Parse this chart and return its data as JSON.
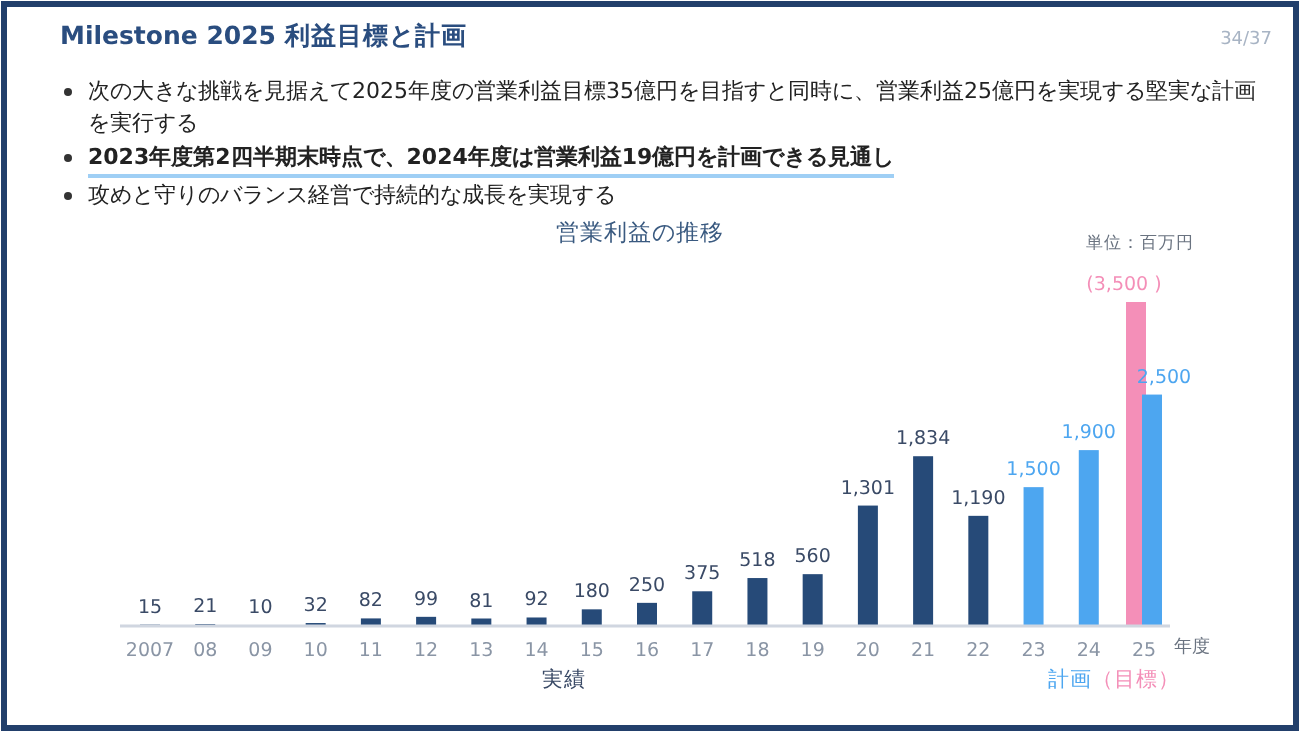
{
  "chart_data": {
    "type": "bar",
    "title": "Milestone 2025 利益目標と計画",
    "subtitle": "営業利益の推移",
    "xlabel": "年度",
    "annotations": [
      "34/37",
      "次の大きな挑戦を見据えて2025年度の営業利益目標35億円を目指すと同時に、営業利益25億円を実現する堅実な計画を実行する",
      "2023年度第2四半期末時点で、2024年度は営業利益19億円を計画できる見通し",
      "攻めと守りのバランス経営で持続的な成長を実現する",
      "単位：百万円"
    ],
    "categories": [
      "2007",
      "08",
      "09",
      "10",
      "11",
      "12",
      "13",
      "14",
      "15",
      "16",
      "17",
      "18",
      "19",
      "20",
      "21",
      "22",
      "23",
      "24",
      "25"
    ],
    "series": [
      {
        "name": "実績",
        "color": "#264a78",
        "values": [
          15,
          21,
          10,
          32,
          82,
          99,
          81,
          92,
          180,
          250,
          375,
          518,
          560,
          1301,
          1834,
          1190,
          null,
          null,
          null
        ],
        "value_labels": [
          "15",
          "21",
          "10",
          "32",
          "82",
          "99",
          "81",
          "92",
          "180",
          "250",
          "375",
          "518",
          "560",
          "1,301",
          "1,834",
          "1,190",
          null,
          null,
          null
        ]
      },
      {
        "name": "（目標）",
        "color": "#f48fb8",
        "values": [
          null,
          null,
          null,
          null,
          null,
          null,
          null,
          null,
          null,
          null,
          null,
          null,
          null,
          null,
          null,
          null,
          null,
          null,
          3500
        ],
        "value_labels": [
          null,
          null,
          null,
          null,
          null,
          null,
          null,
          null,
          null,
          null,
          null,
          null,
          null,
          null,
          null,
          null,
          null,
          null,
          "(3,500 )"
        ]
      },
      {
        "name": "計画",
        "color": "#4da6f0",
        "values": [
          null,
          null,
          null,
          null,
          null,
          null,
          null,
          null,
          null,
          null,
          null,
          null,
          null,
          null,
          null,
          null,
          1500,
          1900,
          2500
        ],
        "value_labels": [
          null,
          null,
          null,
          null,
          null,
          null,
          null,
          null,
          null,
          null,
          null,
          null,
          null,
          null,
          null,
          null,
          "1,500",
          "1,900",
          "2,500"
        ]
      }
    ]
  }
}
